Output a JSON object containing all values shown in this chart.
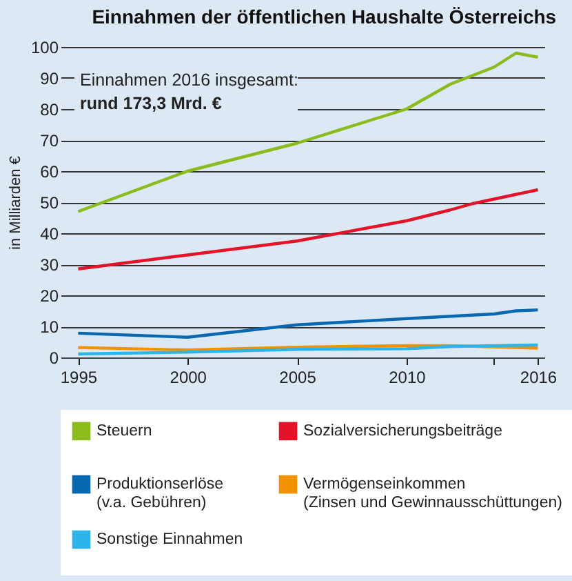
{
  "chart_data": {
    "type": "line",
    "title": "Einnahmen der öffentlichen Haushalte Österreichs",
    "ylabel": "in Milliarden €",
    "annotations": [
      "Einnahmen 2016 insgesamt:",
      "rund 173,3 Mrd. €"
    ],
    "xlim": [
      1994.2,
      2016.3
    ],
    "xticks": [
      1995,
      2000,
      2005,
      2010,
      {
        "value": 2014,
        "label": null
      },
      2016
    ],
    "ylim": [
      0,
      100
    ],
    "yticks": [
      0,
      10,
      20,
      30,
      40,
      50,
      60,
      70,
      80,
      90,
      100
    ],
    "grid": "y",
    "legend": "bottom",
    "marker": "none",
    "line_style": "solid",
    "series": [
      {
        "name": "Steuern",
        "color": "#8cbb1d",
        "x": [
          1995,
          2000,
          2005,
          2010,
          2012,
          2014,
          2015,
          2016
        ],
        "values": [
          47,
          60,
          69,
          80,
          88,
          93.5,
          98,
          96.7
        ]
      },
      {
        "name": "Sozialversicherungsbeiträge",
        "color": "#e3142a",
        "x": [
          1995,
          2000,
          2005,
          2010,
          2012,
          2013,
          2014,
          2015,
          2016
        ],
        "values": [
          28.5,
          33,
          37.5,
          44,
          47.5,
          49.5,
          51,
          52.5,
          54
        ]
      },
      {
        "name": "Produktionserlöse (v.a. Gebühren)",
        "color": "#0a68b0",
        "x": [
          1995,
          2000,
          2005,
          2010,
          2014,
          2015,
          2016
        ],
        "values": [
          7.8,
          6.5,
          10.5,
          12.5,
          14,
          15,
          15.3
        ]
      },
      {
        "name": "Vermögenseinkommen (Zinsen und Gewinnausschüttungen)",
        "color": "#f39200",
        "x": [
          1995,
          2000,
          2005,
          2010,
          2012,
          2014,
          2016
        ],
        "values": [
          3.2,
          2.4,
          3.3,
          3.8,
          3.8,
          3.4,
          3.0
        ]
      },
      {
        "name": "Sonstige Einnahmen",
        "color": "#2eb4e8",
        "x": [
          1995,
          2000,
          2005,
          2010,
          2012,
          2014,
          2016
        ],
        "values": [
          1.1,
          1.7,
          2.6,
          2.8,
          3.5,
          3.8,
          4.0
        ]
      }
    ]
  }
}
